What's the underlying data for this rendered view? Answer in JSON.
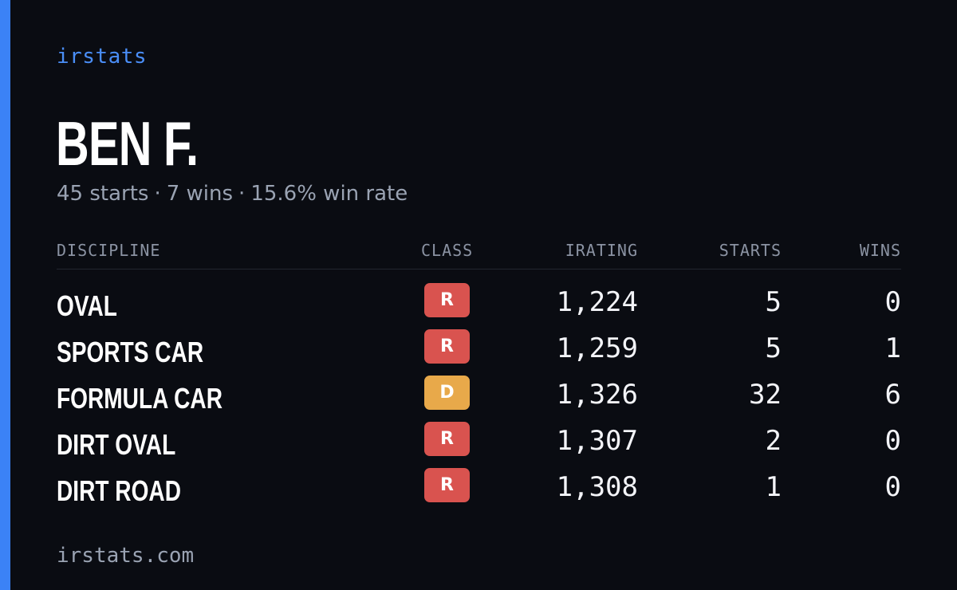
{
  "brand": "irstats",
  "driver": {
    "name": "BEN F.",
    "starts_text": "45 starts",
    "wins_text": "7 wins",
    "winrate_text": "15.6% win rate",
    "separator": "·"
  },
  "table": {
    "headers": {
      "discipline": "DISCIPLINE",
      "class": "CLASS",
      "irating": "IRATING",
      "starts": "STARTS",
      "wins": "WINS"
    },
    "rows": [
      {
        "discipline": "OVAL",
        "class": "R",
        "class_color": "#d9534f",
        "irating": "1,224",
        "starts": "5",
        "wins": "0"
      },
      {
        "discipline": "SPORTS CAR",
        "class": "R",
        "class_color": "#d9534f",
        "irating": "1,259",
        "starts": "5",
        "wins": "1"
      },
      {
        "discipline": "FORMULA CAR",
        "class": "D",
        "class_color": "#e8a94a",
        "irating": "1,326",
        "starts": "32",
        "wins": "6"
      },
      {
        "discipline": "DIRT OVAL",
        "class": "R",
        "class_color": "#d9534f",
        "irating": "1,307",
        "starts": "2",
        "wins": "0"
      },
      {
        "discipline": "DIRT ROAD",
        "class": "R",
        "class_color": "#d9534f",
        "irating": "1,308",
        "starts": "1",
        "wins": "0"
      }
    ]
  },
  "footer": "irstats.com",
  "colors": {
    "accent": "#3b82f6",
    "brand_text": "#4a8ef7",
    "background": "#0a0c12"
  }
}
